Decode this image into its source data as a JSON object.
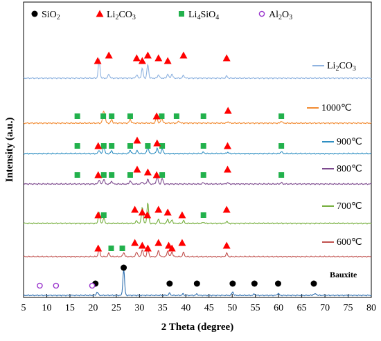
{
  "chart_data": {
    "type": "line",
    "xlabel": "2 Theta (degree)",
    "ylabel": "Intensity (a.u.)",
    "xlim": [
      5,
      80
    ],
    "xticks": [
      5,
      10,
      15,
      20,
      25,
      30,
      35,
      40,
      45,
      50,
      55,
      60,
      65,
      70,
      75,
      80
    ],
    "legend": [
      {
        "key": "sio2",
        "label_parts": [
          [
            "SiO",
            "n"
          ],
          [
            "2",
            "s"
          ]
        ],
        "marker": "circle",
        "color": "#000000"
      },
      {
        "key": "li2co3",
        "label_parts": [
          [
            "Li",
            "n"
          ],
          [
            "2",
            "s"
          ],
          [
            "CO",
            "n"
          ],
          [
            "3",
            "s"
          ]
        ],
        "marker": "triangle",
        "color": "#ff0000"
      },
      {
        "key": "li4sio4",
        "label_parts": [
          [
            "Li",
            "n"
          ],
          [
            "4",
            "s"
          ],
          [
            "SiO",
            "n"
          ],
          [
            "4",
            "s"
          ]
        ],
        "marker": "square",
        "color": "#22b14c"
      },
      {
        "key": "al2o3",
        "label_parts": [
          [
            "Al",
            "n"
          ],
          [
            "2",
            "s"
          ],
          [
            "O",
            "n"
          ],
          [
            "3",
            "s"
          ]
        ],
        "marker": "open-circle",
        "color": "#9933cc"
      }
    ],
    "series": [
      {
        "name": "Li2CO3",
        "label_parts": [
          [
            "Li",
            "n"
          ],
          [
            "2",
            "s"
          ],
          [
            "CO",
            "n"
          ],
          [
            "3",
            "s"
          ]
        ],
        "color": "#8fb3e0",
        "peaks": [
          [
            21.3,
            28
          ],
          [
            23.4,
            6
          ],
          [
            29.4,
            5
          ],
          [
            30.6,
            14
          ],
          [
            31.8,
            20
          ],
          [
            34.1,
            5
          ],
          [
            36.1,
            6
          ],
          [
            37.0,
            6
          ],
          [
            39.5,
            4
          ],
          [
            48.8,
            3
          ]
        ],
        "markers": {
          "li2co3": [
            21,
            23.4,
            29.4,
            30.6,
            31.8,
            34.1,
            36.1,
            39.5,
            48.8
          ]
        }
      },
      {
        "name": "1000℃",
        "label": "1000℃",
        "color": "#f28a30",
        "peaks": [
          [
            22.2,
            14
          ],
          [
            22.5,
            10
          ],
          [
            24.0,
            5
          ],
          [
            28.0,
            6
          ],
          [
            33.7,
            9
          ],
          [
            34.8,
            8
          ],
          [
            38.5,
            3
          ],
          [
            49.1,
            2
          ],
          [
            60.6,
            3
          ]
        ],
        "markers": {
          "li4sio4": [
            16.6,
            22.2,
            24.0,
            28.0,
            34.8,
            38.0,
            43.8,
            60.6
          ],
          "li2co3": [
            33.7,
            49.1
          ]
        }
      },
      {
        "name": "900℃",
        "label": "900℃",
        "color": "#2f8fc2",
        "peaks": [
          [
            21.3,
            5
          ],
          [
            22.3,
            10
          ],
          [
            24.0,
            4
          ],
          [
            28.0,
            5
          ],
          [
            29.5,
            4
          ],
          [
            31.8,
            10
          ],
          [
            33.8,
            8
          ],
          [
            34.9,
            7
          ],
          [
            43.8,
            2
          ],
          [
            49.0,
            2
          ],
          [
            60.6,
            3
          ]
        ],
        "markers": {
          "li4sio4": [
            16.6,
            22.3,
            24.0,
            28.0,
            31.8,
            34.9,
            43.8,
            60.6
          ],
          "li2co3": [
            21.1,
            29.5,
            33.8,
            49.0
          ]
        }
      },
      {
        "name": "800℃",
        "label": "800℃",
        "color": "#7d4a8e",
        "peaks": [
          [
            21.3,
            6
          ],
          [
            22.3,
            7
          ],
          [
            24.0,
            4
          ],
          [
            28.0,
            5
          ],
          [
            30.6,
            3
          ],
          [
            31.8,
            7
          ],
          [
            33.8,
            12
          ],
          [
            34.9,
            8
          ],
          [
            43.8,
            2
          ],
          [
            49.0,
            2
          ],
          [
            60.6,
            2
          ]
        ],
        "markers": {
          "li4sio4": [
            16.6,
            22.3,
            24.0,
            28.0,
            34.9,
            43.8,
            60.6
          ],
          "li2co3": [
            21.1,
            29.5,
            31.8,
            33.7,
            49.0
          ]
        }
      },
      {
        "name": "700℃",
        "label": "700℃",
        "color": "#73ad3a",
        "peaks": [
          [
            21.3,
            16
          ],
          [
            22.3,
            8
          ],
          [
            29.4,
            4
          ],
          [
            30.6,
            24
          ],
          [
            31.8,
            30
          ],
          [
            34.1,
            6
          ],
          [
            36.1,
            6
          ],
          [
            37.0,
            5
          ],
          [
            39.5,
            4
          ],
          [
            43.8,
            2
          ],
          [
            48.8,
            3
          ]
        ],
        "markers": {
          "li2co3": [
            21.1,
            29.0,
            30.6,
            31.7,
            34.1,
            36.1,
            39.2,
            48.8
          ],
          "li4sio4": [
            22.3,
            43.8
          ]
        }
      },
      {
        "name": "600℃",
        "label": "600℃",
        "color": "#c0504d",
        "peaks": [
          [
            21.3,
            12
          ],
          [
            23.4,
            5
          ],
          [
            26.6,
            6
          ],
          [
            29.4,
            7
          ],
          [
            30.6,
            10
          ],
          [
            31.8,
            12
          ],
          [
            34.1,
            9
          ],
          [
            36.1,
            8
          ],
          [
            37.0,
            7
          ],
          [
            39.5,
            6
          ],
          [
            48.8,
            5
          ]
        ],
        "markers": {
          "li2co3": [
            21.1,
            29.0,
            30.6,
            31.8,
            34.1,
            36.3,
            37.0,
            39.2,
            48.8
          ],
          "li4sio4": [
            23.9,
            26.3
          ]
        }
      },
      {
        "name": "Bauxite",
        "label": "Bauxite",
        "color": "#2e6fb0",
        "peaks": [
          [
            20.9,
            5
          ],
          [
            26.6,
            38
          ],
          [
            36.5,
            3
          ],
          [
            39.4,
            2
          ],
          [
            42.4,
            2
          ],
          [
            50.1,
            5
          ],
          [
            54.8,
            2
          ],
          [
            59.9,
            3
          ],
          [
            67.6,
            2
          ],
          [
            68.1,
            2
          ]
        ],
        "markers": {
          "sio2": [
            20.5,
            26.6,
            36.5,
            42.4,
            50.1,
            54.8,
            59.9,
            67.6
          ],
          "al2o3": [
            8.5,
            12.0,
            19.8
          ]
        }
      }
    ]
  }
}
